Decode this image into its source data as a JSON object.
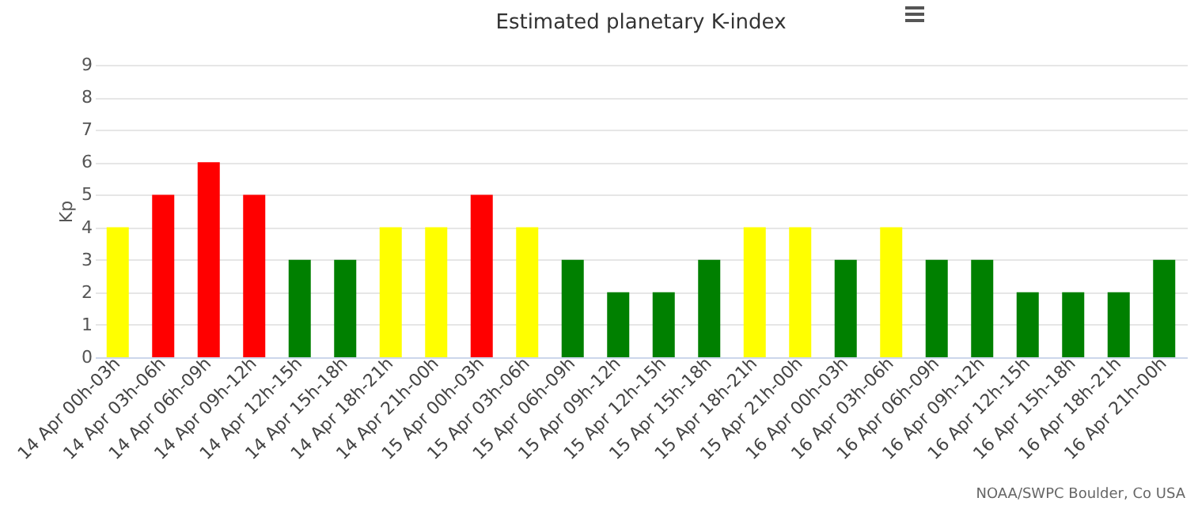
{
  "chart_data": {
    "type": "bar",
    "title": "Estimated planetary K-index",
    "ylabel": "Kp",
    "categories": [
      "14 Apr 00h-03h",
      "14 Apr 03h-06h",
      "14 Apr 06h-09h",
      "14 Apr 09h-12h",
      "14 Apr 12h-15h",
      "14 Apr 15h-18h",
      "14 Apr 18h-21h",
      "14 Apr 21h-00h",
      "15 Apr 00h-03h",
      "15 Apr 03h-06h",
      "15 Apr 06h-09h",
      "15 Apr 09h-12h",
      "15 Apr 12h-15h",
      "15 Apr 15h-18h",
      "15 Apr 18h-21h",
      "15 Apr 21h-00h",
      "16 Apr 00h-03h",
      "16 Apr 03h-06h",
      "16 Apr 06h-09h",
      "16 Apr 09h-12h",
      "16 Apr 12h-15h",
      "16 Apr 15h-18h",
      "16 Apr 18h-21h",
      "16 Apr 21h-00h"
    ],
    "values": [
      4,
      5,
      6,
      5,
      3,
      3,
      4,
      4,
      5,
      4,
      3,
      2,
      2,
      3,
      4,
      4,
      3,
      4,
      3,
      3,
      2,
      2,
      2,
      3
    ],
    "colors": [
      "#ffff00",
      "#ff0000",
      "#ff0000",
      "#ff0000",
      "#008000",
      "#008000",
      "#ffff00",
      "#ffff00",
      "#ff0000",
      "#ffff00",
      "#008000",
      "#008000",
      "#008000",
      "#008000",
      "#ffff00",
      "#ffff00",
      "#008000",
      "#ffff00",
      "#008000",
      "#008000",
      "#008000",
      "#008000",
      "#008000",
      "#008000"
    ],
    "ylim": [
      0,
      9
    ],
    "yticks": [
      0,
      1,
      2,
      3,
      4,
      5,
      6,
      7,
      8,
      9
    ],
    "grid": "y",
    "annotations": [
      "NOAA/SWPC Boulder, Co USA"
    ]
  }
}
